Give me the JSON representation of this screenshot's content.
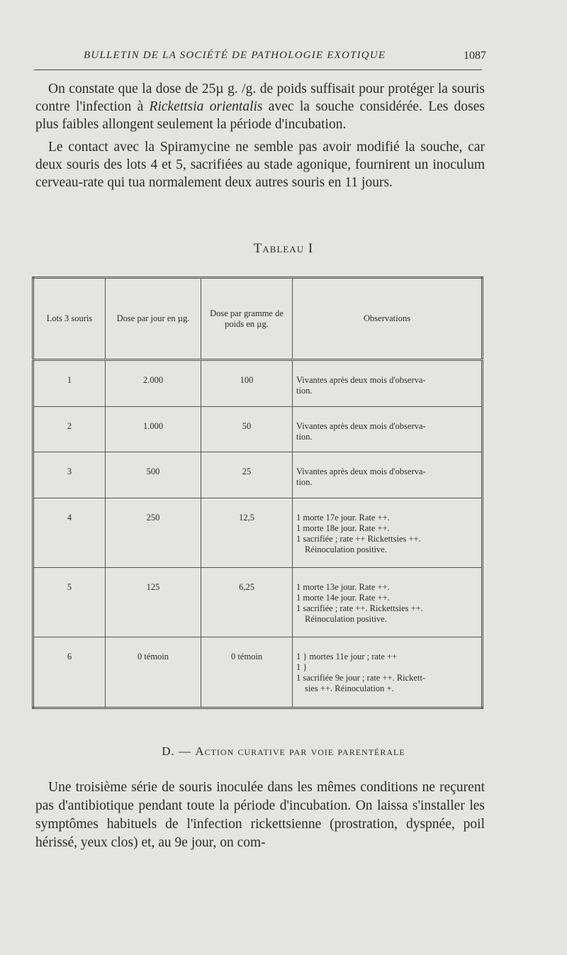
{
  "header": {
    "running_title": "BULLETIN DE LA SOCIÉTÉ DE PATHOLOGIE EXOTIQUE",
    "page_number": "1087"
  },
  "intro": {
    "p1_before": "On constate que la dose de 25µ g. /g. de poids suffisait pour protéger la souris contre l'infection à ",
    "p1_italic": "Rickettsia orientalis",
    "p1_after": " avec la souche considérée. Les doses plus faibles allongent seulement la période d'incubation.",
    "p2": "Le contact avec la Spiramycine ne semble pas avoir modifié la souche, car deux souris des lots 4 et 5, sacrifiées au stade agonique, fournirent un inoculum cerveau-rate qui tua normalement deux autres souris en 11 jours."
  },
  "table": {
    "title": "Tableau I",
    "headers": [
      "Lots 3 souris",
      "Dose par jour en µg.",
      "Dose par gramme de poids en µg.",
      "Observations"
    ],
    "rows": [
      {
        "lot": "1",
        "dose_jour": "2.000",
        "dose_gramme": "100",
        "obs": [
          "Vivantes après deux mois d'observa-",
          "tion."
        ]
      },
      {
        "lot": "2",
        "dose_jour": "1.000",
        "dose_gramme": "50",
        "obs": [
          "Vivantes après deux mois d'observa-",
          "tion."
        ]
      },
      {
        "lot": "3",
        "dose_jour": "500",
        "dose_gramme": "25",
        "obs": [
          "Vivantes après deux mois d'observa-",
          "tion."
        ]
      },
      {
        "lot": "4",
        "dose_jour": "250",
        "dose_gramme": "12,5",
        "obs": [
          "1 morte 17e jour. Rate ++.",
          "1 morte 18e jour. Rate ++.",
          "1 sacrifiée ; rate ++ Rickettsies ++.",
          "Réinoculation positive."
        ]
      },
      {
        "lot": "5",
        "dose_jour": "125",
        "dose_gramme": "6,25",
        "obs": [
          "1 morte 13e jour. Rate ++.",
          "1 morte 14e jour. Rate ++.",
          "1 sacrifiée ; rate ++. Rickettsies ++.",
          "Réinoculation positive."
        ]
      },
      {
        "lot": "6",
        "dose_jour": "0 témoin",
        "dose_gramme": "0 témoin",
        "obs": [
          "1 } mortes 11e jour ; rate ++",
          "1 }",
          "1 sacrifiée 9e jour ; rate ++. Rickett-",
          "sies ++. Réinoculation +."
        ]
      }
    ]
  },
  "section": {
    "letter": "D. — ",
    "title": "Action curative par voie parentérale"
  },
  "outro": {
    "p1": "Une troisième série de souris inoculée dans les mêmes conditions ne reçurent pas d'antibiotique pendant toute la période d'incubation. On laissa s'installer les symptômes habituels de l'infection rickettsienne (prostration, dyspnée, poil hérissé, yeux clos) et, au 9e jour, on com-"
  }
}
